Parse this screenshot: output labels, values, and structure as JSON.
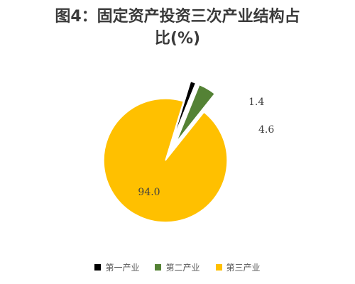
{
  "chart_data": {
    "type": "pie",
    "title_line1": "图4：固定资产投资三次产业结构占",
    "title_line2": "比(%)",
    "slices": [
      {
        "name": "第一产业",
        "value": 1.4,
        "label": "1.4",
        "color": "#000000",
        "exploded": true
      },
      {
        "name": "第二产业",
        "value": 4.6,
        "label": "4.6",
        "color": "#548235",
        "exploded": true
      },
      {
        "name": "第三产业",
        "value": 94.0,
        "label": "94.0",
        "color": "#FFC000",
        "exploded": false
      }
    ],
    "legend": [
      "第一产业",
      "第二产业",
      "第三产业"
    ],
    "legend_position": "bottom"
  }
}
